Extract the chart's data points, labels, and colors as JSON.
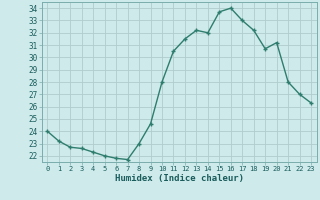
{
  "xlabel": "Humidex (Indice chaleur)",
  "x": [
    0,
    1,
    2,
    3,
    4,
    5,
    6,
    7,
    8,
    9,
    10,
    11,
    12,
    13,
    14,
    15,
    16,
    17,
    18,
    19,
    20,
    21,
    22,
    23
  ],
  "y": [
    24.0,
    23.2,
    22.7,
    22.6,
    22.3,
    22.0,
    21.8,
    21.7,
    23.0,
    24.6,
    28.0,
    30.5,
    31.5,
    32.2,
    32.0,
    33.7,
    34.0,
    33.0,
    32.2,
    30.7,
    31.2,
    28.0,
    27.0,
    26.3
  ],
  "ylim": [
    21.5,
    34.5
  ],
  "yticks": [
    22,
    23,
    24,
    25,
    26,
    27,
    28,
    29,
    30,
    31,
    32,
    33,
    34
  ],
  "xticks": [
    0,
    1,
    2,
    3,
    4,
    5,
    6,
    7,
    8,
    9,
    10,
    11,
    12,
    13,
    14,
    15,
    16,
    17,
    18,
    19,
    20,
    21,
    22,
    23
  ],
  "line_color": "#2e7d6e",
  "marker": "+",
  "bg_color": "#ceeaea",
  "grid_color": "#b0cccc",
  "axis_bg_color": "#ceeaea",
  "tick_label_color": "#1a5c5c",
  "xlabel_color": "#1a5c5c"
}
